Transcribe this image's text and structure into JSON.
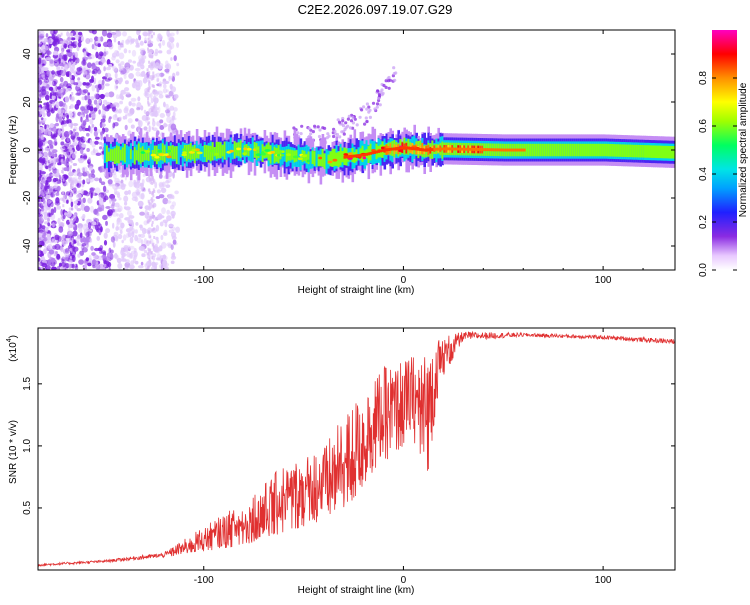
{
  "title": "C2E2.2026.097.19.07.G29",
  "chart_data": [
    {
      "type": "heatmap",
      "title": "C2E2.2026.097.19.07.G29",
      "xlabel": "Height of straight line (km)",
      "ylabel": "Frequency (Hz)",
      "xlim": [
        -183,
        136
      ],
      "ylim": [
        -50,
        50
      ],
      "xticks": [
        -100,
        0,
        100
      ],
      "yticks": [
        -40,
        -20,
        0,
        20,
        40
      ],
      "xtick_labels": [
        "-100",
        "0",
        "100"
      ],
      "ytick_labels": [
        "-40",
        "-20",
        "0",
        "20",
        "40"
      ],
      "colorbar": {
        "label": "Normalized spectral amplitude",
        "range": [
          0,
          1
        ],
        "ticks": [
          0.0,
          0.2,
          0.4,
          0.6,
          0.8
        ],
        "tick_labels": [
          "0.0",
          "0.2",
          "0.4",
          "0.6",
          "0.8"
        ]
      },
      "description_points": {
        "band_center_hz": [
          [
            -145,
            -2
          ],
          [
            -120,
            -1.5
          ],
          [
            -100,
            -1
          ],
          [
            -80,
            0
          ],
          [
            -60,
            -2
          ],
          [
            -40,
            -4
          ],
          [
            -20,
            -2
          ],
          [
            -10,
            0
          ],
          [
            0,
            1
          ],
          [
            10,
            0
          ],
          [
            20,
            0.5
          ],
          [
            50,
            0
          ],
          [
            100,
            0
          ],
          [
            136,
            -1
          ]
        ],
        "arc_hz": [
          [
            -40,
            6
          ],
          [
            -20,
            14
          ],
          [
            -10,
            24
          ],
          [
            -5,
            32
          ]
        ]
      }
    },
    {
      "type": "line",
      "xlabel": "Height of straight line (km)",
      "ylabel": "SNR (10 * v/v)",
      "y_scale_label": "(x10",
      "y_scale_exponent": "4",
      "xlim": [
        -183,
        136
      ],
      "ylim": [
        0,
        1.95
      ],
      "xticks": [
        -100,
        0,
        100
      ],
      "xtick_labels": [
        "-100",
        "0",
        "100"
      ],
      "yticks": [
        0.5,
        1.0,
        1.5
      ],
      "ytick_labels": [
        "0.5",
        "1.0",
        "1.5"
      ],
      "color": "#e03030",
      "envelope": [
        [
          -183,
          0.03,
          0.05
        ],
        [
          -150,
          0.06,
          0.08
        ],
        [
          -120,
          0.1,
          0.14
        ],
        [
          -100,
          0.15,
          0.35
        ],
        [
          -80,
          0.2,
          0.55
        ],
        [
          -60,
          0.3,
          0.85
        ],
        [
          -40,
          0.4,
          1.0
        ],
        [
          -25,
          0.55,
          1.35
        ],
        [
          -15,
          0.8,
          1.6
        ],
        [
          0,
          1.0,
          1.7
        ],
        [
          5,
          1.05,
          1.73
        ],
        [
          12,
          0.75,
          1.8
        ],
        [
          18,
          1.5,
          1.88
        ],
        [
          30,
          1.85,
          1.92
        ],
        [
          60,
          1.88,
          1.91
        ],
        [
          100,
          1.86,
          1.89
        ],
        [
          136,
          1.82,
          1.86
        ]
      ]
    }
  ]
}
